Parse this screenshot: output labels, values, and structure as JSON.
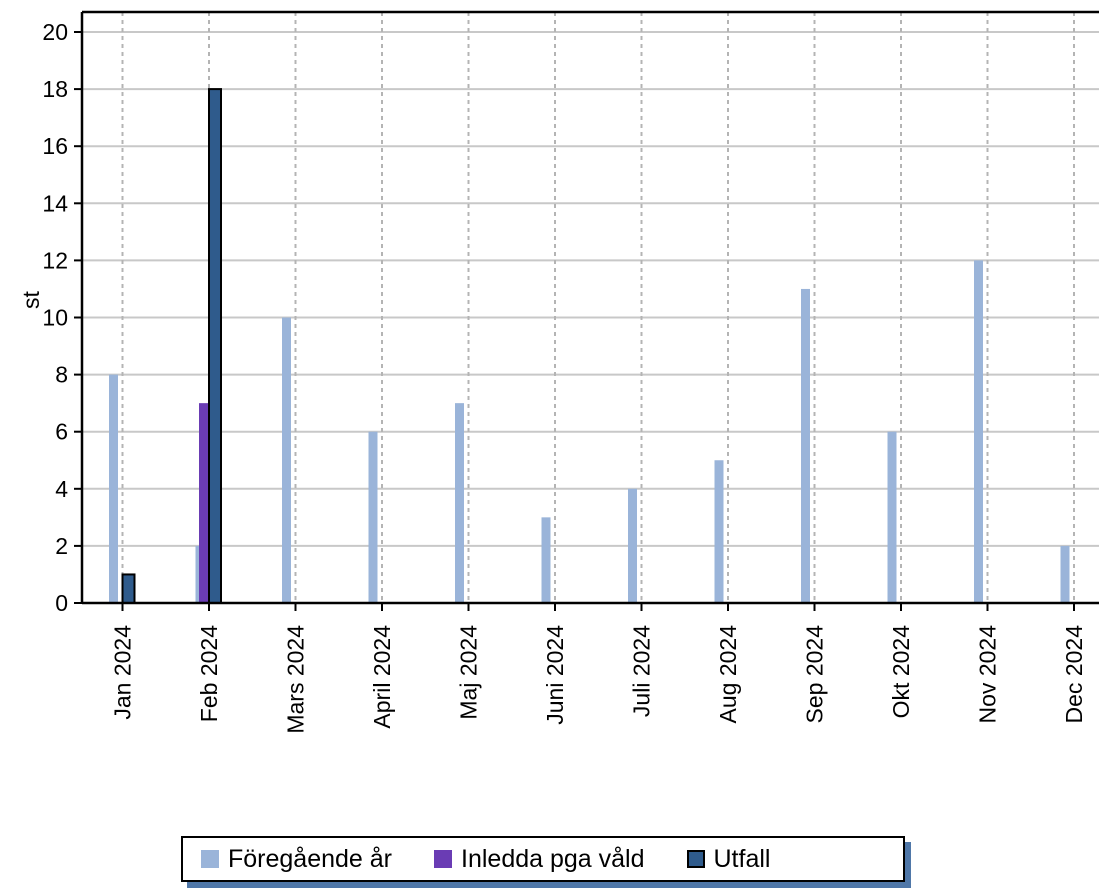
{
  "chart_data": {
    "type": "bar",
    "title": "",
    "xlabel": "",
    "ylabel": "st",
    "ylim": [
      0,
      20
    ],
    "yticks": [
      0,
      2,
      4,
      6,
      8,
      10,
      12,
      14,
      16,
      18,
      20
    ],
    "grid": true,
    "legend_position": "bottom",
    "categories": [
      "Jan 2024",
      "Feb 2024",
      "Mars 2024",
      "April 2024",
      "Maj 2024",
      "Juni 2024",
      "Juli 2024",
      "Aug 2024",
      "Sep 2024",
      "Okt 2024",
      "Nov 2024",
      "Dec 2024"
    ],
    "series": [
      {
        "name": "Föregående år",
        "color": "#9ab4d9",
        "values": [
          8,
          2,
          10,
          6,
          7,
          3,
          4,
          5,
          11,
          6,
          12,
          2
        ]
      },
      {
        "name": "Inledda pga våld",
        "color": "#6a3cb4",
        "values": [
          null,
          7,
          null,
          null,
          null,
          null,
          null,
          null,
          null,
          null,
          null,
          null
        ]
      },
      {
        "name": "Utfall",
        "color": "#2f5b8c",
        "values": [
          1,
          18,
          null,
          null,
          null,
          null,
          null,
          null,
          null,
          null,
          null,
          null
        ]
      }
    ]
  }
}
